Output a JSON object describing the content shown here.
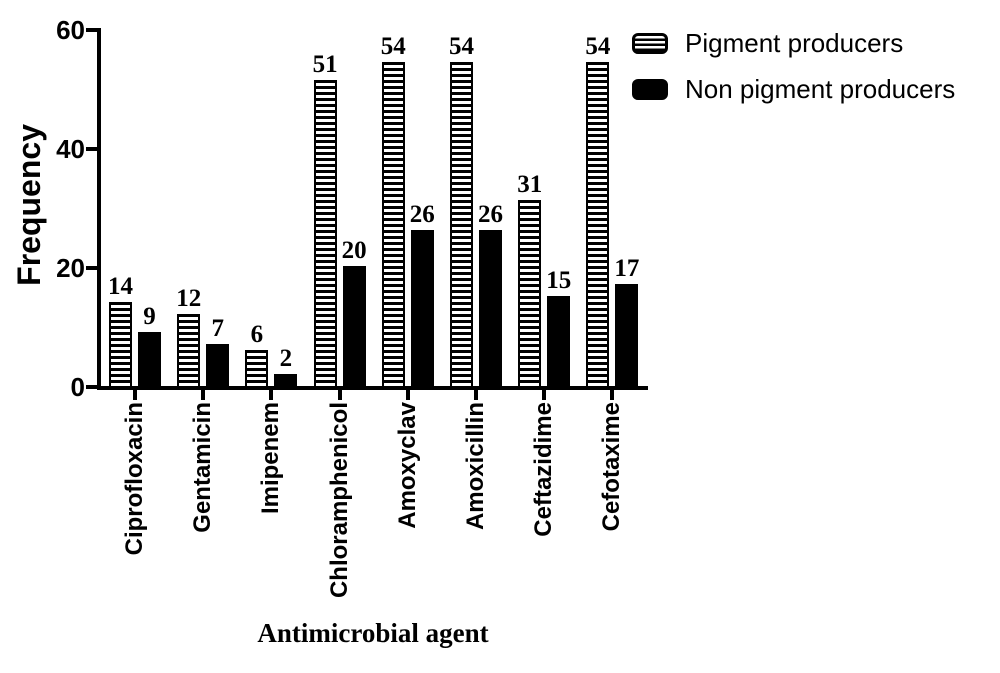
{
  "chart_data": {
    "type": "bar",
    "xlabel": "Antimicrobial agent",
    "ylabel": "Frequency",
    "categories": [
      "Ciprofloxacin",
      "Gentamicin",
      "Imipenem",
      "Chloramphenicol",
      "Amoxyclav",
      "Amoxicillin",
      "Ceftazidime",
      "Cefotaxime"
    ],
    "series": [
      {
        "name": "Pigment producers",
        "pattern": "horizontal-stripes",
        "values": [
          14,
          12,
          6,
          51,
          54,
          54,
          31,
          54
        ]
      },
      {
        "name": "Non pigment producers",
        "pattern": "solid",
        "values": [
          9,
          7,
          2,
          20,
          26,
          26,
          15,
          17
        ]
      }
    ],
    "bar_value_labels": true,
    "ylim": [
      0,
      60
    ],
    "yticks": [
      0,
      20,
      40,
      60
    ],
    "grid": false,
    "legend_position": "top-right",
    "colors": {
      "foreground": "#000000",
      "background": "#ffffff"
    }
  }
}
